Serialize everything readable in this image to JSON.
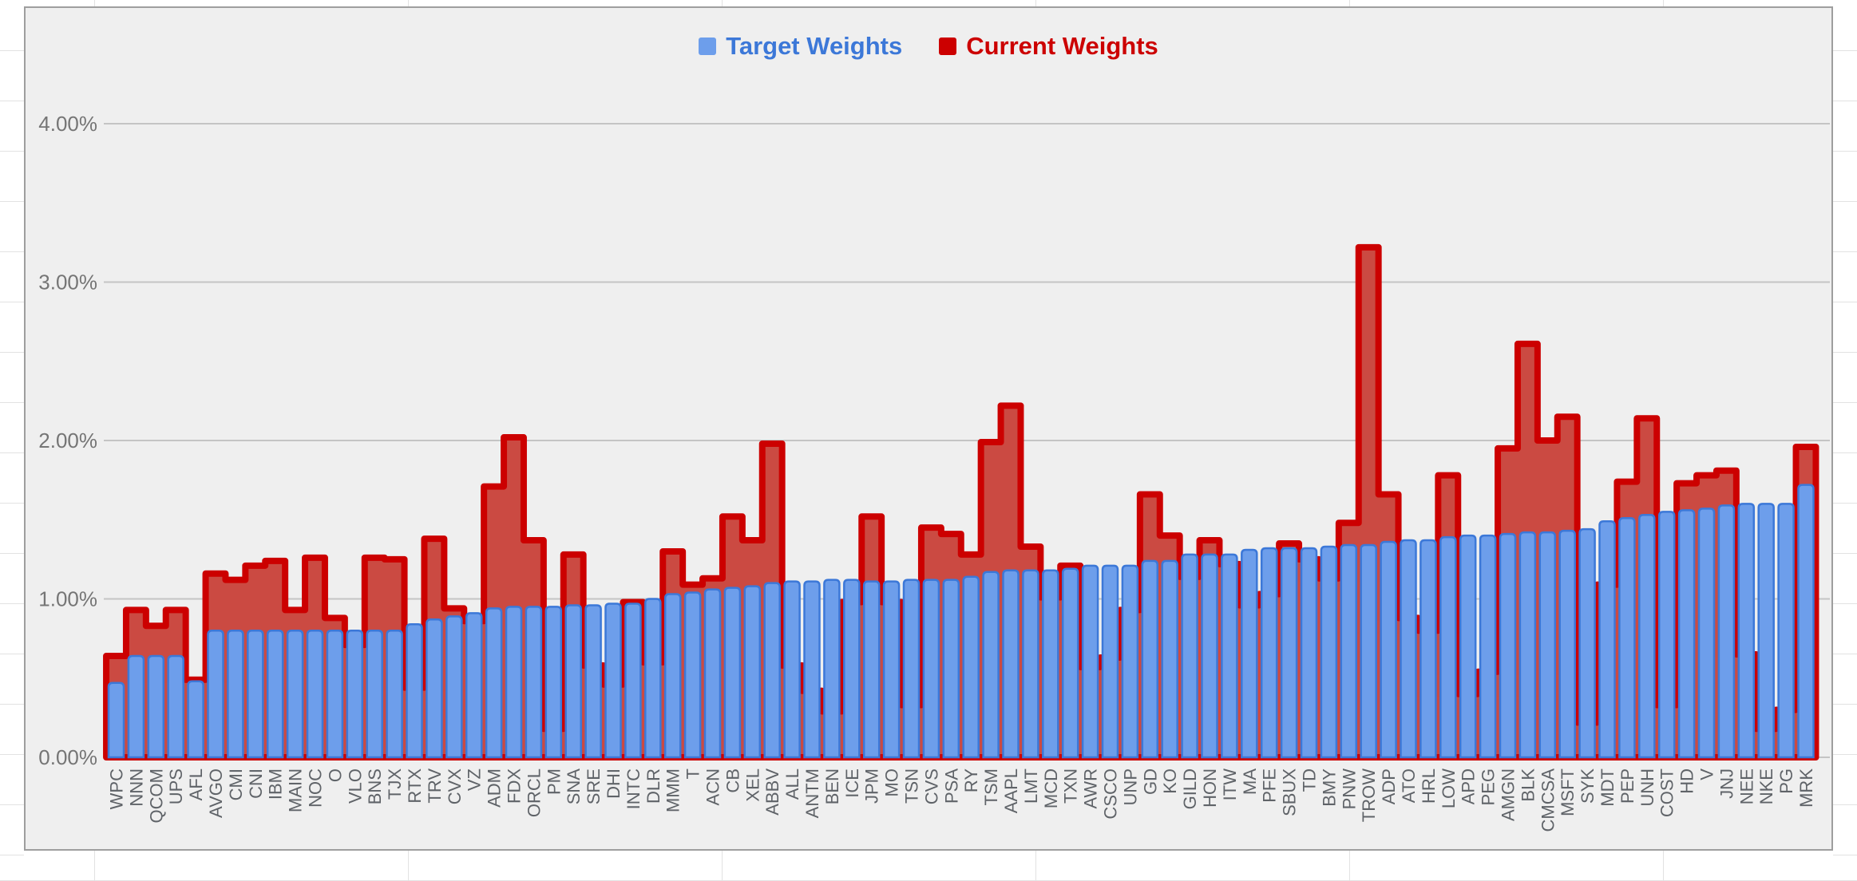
{
  "app": {
    "window_title": "Portfolio Weights Chart"
  },
  "legend": {
    "target_label": "Target Weights",
    "current_label": "Current Weights",
    "target_text_color": "#3c78d8",
    "current_text_color": "#cc0000"
  },
  "colors": {
    "target_fill": "#6d9eeb",
    "target_stroke": "#3c78d8",
    "current_fill": "#cb4a42",
    "current_stroke": "#cc0000",
    "plot_background": "#efefef",
    "panel_border": "#9e9e9e",
    "gridline": "#c4c4c4",
    "axis_text": "#757575",
    "tick_text": "#5f6368"
  },
  "chart_data": {
    "type": "bar",
    "title": "",
    "xlabel": "",
    "ylabel": "",
    "ylim": [
      0,
      4.35
    ],
    "grid": true,
    "legend_position": "top",
    "y_tick_labels": [
      "0.00%",
      "1.00%",
      "2.00%",
      "3.00%",
      "4.00%"
    ],
    "y_tick_values": [
      0,
      1,
      2,
      3,
      4
    ],
    "categories": [
      "WPC",
      "NNN",
      "QCOM",
      "UPS",
      "AFL",
      "AVGO",
      "CMI",
      "CNI",
      "IBM",
      "MAIN",
      "NOC",
      "O",
      "VLO",
      "BNS",
      "TJX",
      "RTX",
      "TRV",
      "CVX",
      "VZ",
      "ADM",
      "FDX",
      "ORCL",
      "PM",
      "SNA",
      "SRE",
      "DHI",
      "INTC",
      "DLR",
      "MMM",
      "T",
      "ACN",
      "CB",
      "XEL",
      "ABBV",
      "ALL",
      "ANTM",
      "BEN",
      "ICE",
      "JPM",
      "MO",
      "TSN",
      "CVS",
      "PSA",
      "RY",
      "TSM",
      "AAPL",
      "LMT",
      "MCD",
      "TXN",
      "AWR",
      "CSCO",
      "UNP",
      "GD",
      "KO",
      "GILD",
      "HON",
      "ITW",
      "MA",
      "PFE",
      "SBUX",
      "TD",
      "BMY",
      "PNW",
      "TROW",
      "ADP",
      "ATO",
      "HRL",
      "LOW",
      "APD",
      "PEG",
      "AMGN",
      "BLK",
      "CMCSA",
      "MSFT",
      "SYK",
      "MDT",
      "PEP",
      "UNH",
      "COST",
      "HD",
      "V",
      "JNJ",
      "NEE",
      "NKE",
      "PG",
      "MRK"
    ],
    "series": [
      {
        "name": "Target Weights",
        "unit": "%",
        "values": [
          0.47,
          0.64,
          0.64,
          0.64,
          0.48,
          0.8,
          0.8,
          0.8,
          0.8,
          0.8,
          0.8,
          0.8,
          0.8,
          0.8,
          0.8,
          0.84,
          0.87,
          0.89,
          0.91,
          0.94,
          0.95,
          0.95,
          0.95,
          0.96,
          0.96,
          0.97,
          0.97,
          1.0,
          1.03,
          1.04,
          1.06,
          1.07,
          1.08,
          1.1,
          1.11,
          1.11,
          1.12,
          1.12,
          1.11,
          1.11,
          1.12,
          1.12,
          1.12,
          1.14,
          1.17,
          1.18,
          1.18,
          1.18,
          1.19,
          1.21,
          1.21,
          1.21,
          1.24,
          1.24,
          1.28,
          1.28,
          1.28,
          1.31,
          1.32,
          1.32,
          1.32,
          1.33,
          1.34,
          1.34,
          1.36,
          1.37,
          1.37,
          1.39,
          1.4,
          1.4,
          1.41,
          1.42,
          1.42,
          1.43,
          1.44,
          1.49,
          1.51,
          1.53,
          1.55,
          1.56,
          1.57,
          1.59,
          1.6,
          1.6,
          1.6,
          1.72
        ]
      },
      {
        "name": "Current Weights",
        "unit": "%",
        "values": [
          0.64,
          0.93,
          0.83,
          0.93,
          0.49,
          1.16,
          1.12,
          1.21,
          1.24,
          0.93,
          1.26,
          0.88,
          0.71,
          1.26,
          1.25,
          0.44,
          1.38,
          0.94,
          0.86,
          1.71,
          2.02,
          1.37,
          0.18,
          1.28,
          0.58,
          0.46,
          0.98,
          0.6,
          1.3,
          1.09,
          1.13,
          1.52,
          1.37,
          1.98,
          0.58,
          0.42,
          0.29,
          0.98,
          1.52,
          0.98,
          0.33,
          1.45,
          1.41,
          1.28,
          1.99,
          2.22,
          1.33,
          1.01,
          1.21,
          0.57,
          0.63,
          0.93,
          1.66,
          1.4,
          1.14,
          1.37,
          1.22,
          0.96,
          1.03,
          1.35,
          1.25,
          1.13,
          1.48,
          3.22,
          1.66,
          0.88,
          0.8,
          1.78,
          0.4,
          0.54,
          1.95,
          2.61,
          2.0,
          2.15,
          0.22,
          1.09,
          1.74,
          2.14,
          0.33,
          1.73,
          1.78,
          1.81,
          0.65,
          0.18,
          0.3,
          1.96
        ]
      }
    ]
  }
}
